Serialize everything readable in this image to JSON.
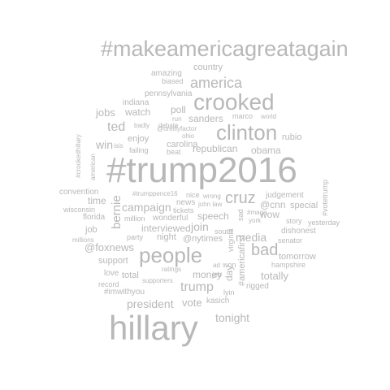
{
  "cloud": {
    "color": "#b8b8b8",
    "words": [
      "#makeamericagreatagain",
      "country",
      "amazing",
      "biased",
      "america",
      "pennsylvania",
      "crooked",
      "indiana",
      "world",
      "poll",
      "debate",
      "jobs",
      "watch",
      "run",
      "marco",
      "sanders",
      "ted",
      "badly",
      "@oreillyfactor",
      "clinton",
      "enjoy",
      "ohio",
      "rubio",
      "#crookedhillary",
      "carolina",
      "win",
      "isis",
      "failing",
      "beat",
      "republican",
      "american",
      "obama",
      "#trump2016",
      "convention",
      "#trumppence16",
      "nice",
      "wrong",
      "judgement",
      "time",
      "bernie",
      "campaign",
      "news",
      "john law",
      "cruz",
      "wisconsin",
      "tickets",
      "@cnn",
      "special",
      "#votetrump",
      "florida",
      "million",
      "wonderful",
      "speech",
      "sad",
      "wow",
      "job",
      "interviewed",
      "join",
      "virginia",
      "#maga",
      "story",
      "yesterday",
      "party",
      "night",
      "south",
      "york",
      "media",
      "dishonest",
      "millions",
      "@foxnews",
      "@nytimes",
      "senator",
      "support",
      "people",
      "bad",
      "tomorrow",
      "ratings",
      "ad",
      "won",
      "#americafirst",
      "hampshire",
      "love",
      "total",
      "money",
      "day",
      "totally",
      "record",
      "supporters",
      "jeb",
      "trump",
      "rigged",
      "#imwithyou",
      "lyin",
      "president",
      "kasich",
      "vote",
      "tonight",
      "hillary"
    ]
  }
}
